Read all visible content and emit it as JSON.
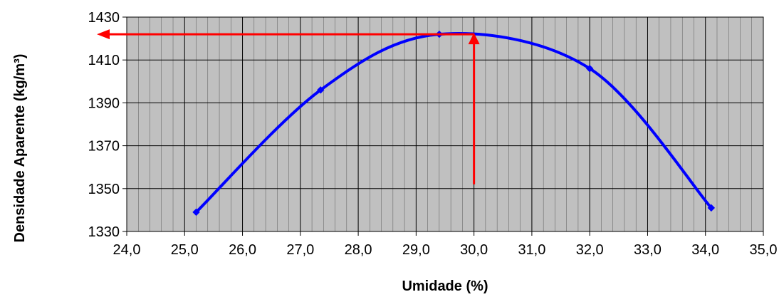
{
  "chart_data": {
    "type": "line",
    "title": "",
    "xlabel": "Umidade (%)",
    "ylabel": "Densidade Aparente (kg/m³)",
    "xlim": [
      24.0,
      35.0
    ],
    "ylim": [
      1330,
      1430
    ],
    "x_ticks": [
      "24,0",
      "25,0",
      "26,0",
      "27,0",
      "28,0",
      "29,0",
      "30,0",
      "31,0",
      "32,0",
      "33,0",
      "34,0",
      "35,0"
    ],
    "y_ticks": [
      "1330",
      "1350",
      "1370",
      "1390",
      "1410",
      "1430"
    ],
    "x_tick_values": [
      24,
      25,
      26,
      27,
      28,
      29,
      30,
      31,
      32,
      33,
      34,
      35
    ],
    "y_tick_values": [
      1330,
      1350,
      1370,
      1390,
      1410,
      1430
    ],
    "grid": true,
    "minor_x_grid_step": 0.2,
    "plot_background": "#c0c0c0",
    "series": [
      {
        "color": "#0000ff",
        "marker": "diamond",
        "smooth": true,
        "x": [
          25.2,
          27.35,
          29.4,
          32.0,
          34.1
        ],
        "y": [
          1339,
          1396,
          1422,
          1406,
          1341
        ]
      }
    ],
    "annotations": {
      "color": "#ff0000",
      "optimum_x": 30.0,
      "optimum_y": 1422,
      "vertical_from_y": 1352
    }
  }
}
